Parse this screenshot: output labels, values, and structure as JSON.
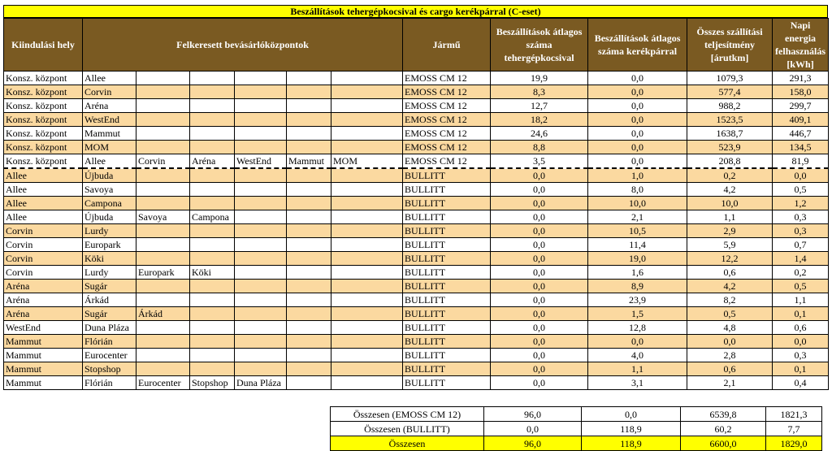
{
  "title": "Beszállítások tehergépkocsival és cargo kerékpárral (C-eset)",
  "headers": {
    "origin": "Kiindulási hely",
    "centers": "Felkeresett bevásárlóközpontok",
    "vehicle": "Jármű",
    "truck_deliveries": "Beszállítások átlagos száma tehergépkocsival",
    "bike_deliveries": "Beszállítások átlagos száma kerékpárral",
    "total_perf": "Összes szállítási teljesítmény [árutkm]",
    "energy": "Napi energia felhasználás [kWh]"
  },
  "rows": [
    {
      "origin": "Konsz. központ",
      "c1": "Allee",
      "c2": "",
      "c3": "",
      "c4": "",
      "c5": "",
      "c6": "",
      "vehicle": "EMOSS CM 12",
      "truck": "19,9",
      "bike": "0,0",
      "perf": "1079,3",
      "energy": "291,3"
    },
    {
      "origin": "Konsz. központ",
      "c1": "Corvin",
      "c2": "",
      "c3": "",
      "c4": "",
      "c5": "",
      "c6": "",
      "vehicle": "EMOSS CM 12",
      "truck": "8,3",
      "bike": "0,0",
      "perf": "577,4",
      "energy": "158,0"
    },
    {
      "origin": "Konsz. központ",
      "c1": "Aréna",
      "c2": "",
      "c3": "",
      "c4": "",
      "c5": "",
      "c6": "",
      "vehicle": "EMOSS CM 12",
      "truck": "12,7",
      "bike": "0,0",
      "perf": "988,2",
      "energy": "299,7"
    },
    {
      "origin": "Konsz. központ",
      "c1": "WestEnd",
      "c2": "",
      "c3": "",
      "c4": "",
      "c5": "",
      "c6": "",
      "vehicle": "EMOSS CM 12",
      "truck": "18,2",
      "bike": "0,0",
      "perf": "1523,5",
      "energy": "409,1"
    },
    {
      "origin": "Konsz. központ",
      "c1": "Mammut",
      "c2": "",
      "c3": "",
      "c4": "",
      "c5": "",
      "c6": "",
      "vehicle": "EMOSS CM 12",
      "truck": "24,6",
      "bike": "0,0",
      "perf": "1638,7",
      "energy": "446,7"
    },
    {
      "origin": "Konsz. központ",
      "c1": "MOM",
      "c2": "",
      "c3": "",
      "c4": "",
      "c5": "",
      "c6": "",
      "vehicle": "EMOSS CM 12",
      "truck": "8,8",
      "bike": "0,0",
      "perf": "523,9",
      "energy": "134,5"
    },
    {
      "origin": "Konsz. központ",
      "c1": "Allee",
      "c2": "Corvin",
      "c3": "Aréna",
      "c4": "WestEnd",
      "c5": "Mammut",
      "c6": "MOM",
      "vehicle": "EMOSS CM 12",
      "truck": "3,5",
      "bike": "0,0",
      "perf": "208,8",
      "energy": "81,9"
    },
    {
      "origin": "Allee",
      "c1": "Újbuda",
      "c2": "",
      "c3": "",
      "c4": "",
      "c5": "",
      "c6": "",
      "vehicle": "BULLITT",
      "truck": "0,0",
      "bike": "1,0",
      "perf": "0,2",
      "energy": "0,0"
    },
    {
      "origin": "Allee",
      "c1": "Savoya",
      "c2": "",
      "c3": "",
      "c4": "",
      "c5": "",
      "c6": "",
      "vehicle": "BULLITT",
      "truck": "0,0",
      "bike": "8,0",
      "perf": "4,2",
      "energy": "0,5"
    },
    {
      "origin": "Allee",
      "c1": "Campona",
      "c2": "",
      "c3": "",
      "c4": "",
      "c5": "",
      "c6": "",
      "vehicle": "BULLITT",
      "truck": "0,0",
      "bike": "10,0",
      "perf": "10,0",
      "energy": "1,2"
    },
    {
      "origin": "Allee",
      "c1": "Újbuda",
      "c2": "Savoya",
      "c3": "Campona",
      "c4": "",
      "c5": "",
      "c6": "",
      "vehicle": "BULLITT",
      "truck": "0,0",
      "bike": "2,1",
      "perf": "1,1",
      "energy": "0,3"
    },
    {
      "origin": "Corvin",
      "c1": "Lurdy",
      "c2": "",
      "c3": "",
      "c4": "",
      "c5": "",
      "c6": "",
      "vehicle": "BULLITT",
      "truck": "0,0",
      "bike": "10,5",
      "perf": "2,9",
      "energy": "0,3"
    },
    {
      "origin": "Corvin",
      "c1": "Europark",
      "c2": "",
      "c3": "",
      "c4": "",
      "c5": "",
      "c6": "",
      "vehicle": "BULLITT",
      "truck": "0,0",
      "bike": "11,4",
      "perf": "5,9",
      "energy": "0,7"
    },
    {
      "origin": "Corvin",
      "c1": "Köki",
      "c2": "",
      "c3": "",
      "c4": "",
      "c5": "",
      "c6": "",
      "vehicle": "BULLITT",
      "truck": "0,0",
      "bike": "19,0",
      "perf": "12,2",
      "energy": "1,4"
    },
    {
      "origin": "Corvin",
      "c1": "Lurdy",
      "c2": "Europark",
      "c3": "Köki",
      "c4": "",
      "c5": "",
      "c6": "",
      "vehicle": "BULLITT",
      "truck": "0,0",
      "bike": "1,6",
      "perf": "0,6",
      "energy": "0,2"
    },
    {
      "origin": "Aréna",
      "c1": "Sugár",
      "c2": "",
      "c3": "",
      "c4": "",
      "c5": "",
      "c6": "",
      "vehicle": "BULLITT",
      "truck": "0,0",
      "bike": "8,9",
      "perf": "4,2",
      "energy": "0,5"
    },
    {
      "origin": "Aréna",
      "c1": "Árkád",
      "c2": "",
      "c3": "",
      "c4": "",
      "c5": "",
      "c6": "",
      "vehicle": "BULLITT",
      "truck": "0,0",
      "bike": "23,9",
      "perf": "8,2",
      "energy": "1,1"
    },
    {
      "origin": "Aréna",
      "c1": "Sugár",
      "c2": "Árkád",
      "c3": "",
      "c4": "",
      "c5": "",
      "c6": "",
      "vehicle": "BULLITT",
      "truck": "0,0",
      "bike": "1,5",
      "perf": "0,5",
      "energy": "0,1"
    },
    {
      "origin": "WestEnd",
      "c1": "Duna Pláza",
      "c2": "",
      "c3": "",
      "c4": "",
      "c5": "",
      "c6": "",
      "vehicle": "BULLITT",
      "truck": "0,0",
      "bike": "12,8",
      "perf": "4,8",
      "energy": "0,6"
    },
    {
      "origin": "Mammut",
      "c1": "Flórián",
      "c2": "",
      "c3": "",
      "c4": "",
      "c5": "",
      "c6": "",
      "vehicle": "BULLITT",
      "truck": "0,0",
      "bike": "0,0",
      "perf": "0,0",
      "energy": "0,0"
    },
    {
      "origin": "Mammut",
      "c1": "Eurocenter",
      "c2": "",
      "c3": "",
      "c4": "",
      "c5": "",
      "c6": "",
      "vehicle": "BULLITT",
      "truck": "0,0",
      "bike": "4,0",
      "perf": "2,8",
      "energy": "0,3"
    },
    {
      "origin": "Mammut",
      "c1": "Stopshop",
      "c2": "",
      "c3": "",
      "c4": "",
      "c5": "",
      "c6": "",
      "vehicle": "BULLITT",
      "truck": "0,0",
      "bike": "1,1",
      "perf": "0,6",
      "energy": "0,1"
    },
    {
      "origin": "Mammut",
      "c1": "Flórián",
      "c2": "Eurocenter",
      "c3": "Stopshop",
      "c4": "Duna Pláza",
      "c5": "",
      "c6": "",
      "vehicle": "BULLITT",
      "truck": "0,0",
      "bike": "3,1",
      "perf": "2,1",
      "energy": "0,4"
    }
  ],
  "totals": [
    {
      "label": "Összesen (EMOSS CM 12)",
      "truck": "96,0",
      "bike": "0,0",
      "perf": "6539,8",
      "energy": "1821,3"
    },
    {
      "label": "Összesen (BULLITT)",
      "truck": "0,0",
      "bike": "118,9",
      "perf": "60,2",
      "energy": "7,7"
    },
    {
      "label": "Összesen",
      "truck": "96,0",
      "bike": "118,9",
      "perf": "6600,0",
      "energy": "1829,0"
    }
  ],
  "colors": {
    "header_bg": "#7a5a22",
    "band": "#fbd9a0",
    "highlight": "#ffff00"
  }
}
